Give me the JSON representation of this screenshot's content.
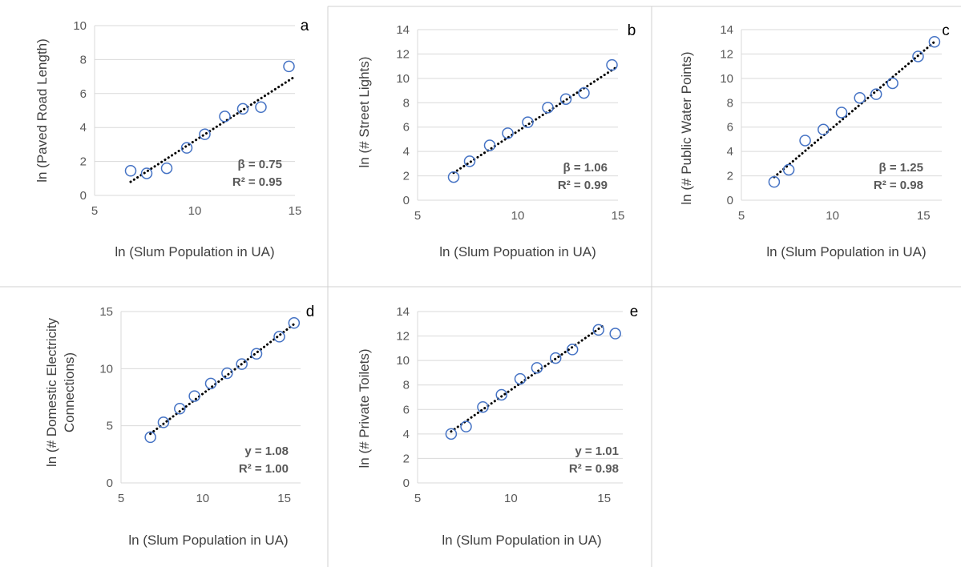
{
  "chart_data": [
    {
      "type": "scatter",
      "panel": "a",
      "xlabel": "ln (Slum Population in UA)",
      "ylabel": "ln (Paved Road Length)",
      "xlim": [
        5,
        15
      ],
      "ylim": [
        0,
        10
      ],
      "xticks": [
        5,
        10,
        15
      ],
      "yticks": [
        0,
        2,
        4,
        6,
        8,
        10
      ],
      "grid": "horizontal",
      "points": [
        {
          "x": 6.8,
          "y": 1.45
        },
        {
          "x": 7.6,
          "y": 1.3
        },
        {
          "x": 8.6,
          "y": 1.6
        },
        {
          "x": 9.6,
          "y": 2.8
        },
        {
          "x": 10.5,
          "y": 3.6
        },
        {
          "x": 11.5,
          "y": 4.65
        },
        {
          "x": 12.4,
          "y": 5.1
        },
        {
          "x": 13.3,
          "y": 5.2
        },
        {
          "x": 14.7,
          "y": 7.6
        }
      ],
      "trendline": {
        "x": [
          6.8,
          15.0
        ],
        "y": [
          0.8,
          7.0
        ]
      },
      "annotation": [
        "β = 0.75",
        "R² = 0.95"
      ]
    },
    {
      "type": "scatter",
      "panel": "b",
      "xlabel": "ln (Slum Popuation in UA)",
      "ylabel": "ln (# Street Lights)",
      "xlim": [
        5,
        15
      ],
      "ylim": [
        0,
        14
      ],
      "xticks": [
        5,
        10,
        15
      ],
      "yticks": [
        0,
        2,
        4,
        6,
        8,
        10,
        12,
        14
      ],
      "grid": "horizontal",
      "points": [
        {
          "x": 6.8,
          "y": 1.9
        },
        {
          "x": 7.6,
          "y": 3.2
        },
        {
          "x": 8.6,
          "y": 4.5
        },
        {
          "x": 9.5,
          "y": 5.5
        },
        {
          "x": 10.5,
          "y": 6.4
        },
        {
          "x": 11.5,
          "y": 7.6
        },
        {
          "x": 12.4,
          "y": 8.3
        },
        {
          "x": 13.3,
          "y": 8.8
        },
        {
          "x": 14.7,
          "y": 11.1
        }
      ],
      "trendline": {
        "x": [
          6.8,
          15.0
        ],
        "y": [
          2.25,
          11.0
        ]
      },
      "annotation": [
        "β = 1.06",
        "R² = 0.99"
      ]
    },
    {
      "type": "scatter",
      "panel": "c",
      "xlabel": "ln (Slum Population in UA)",
      "ylabel": "ln (# Public Water Points)",
      "xlim": [
        5,
        16
      ],
      "ylim": [
        0,
        14
      ],
      "xticks": [
        5,
        10,
        15
      ],
      "yticks": [
        0,
        2,
        4,
        6,
        8,
        10,
        12,
        14
      ],
      "grid": "horizontal",
      "points": [
        {
          "x": 6.8,
          "y": 1.5
        },
        {
          "x": 7.6,
          "y": 2.5
        },
        {
          "x": 8.5,
          "y": 4.9
        },
        {
          "x": 9.5,
          "y": 5.8
        },
        {
          "x": 10.5,
          "y": 7.2
        },
        {
          "x": 11.5,
          "y": 8.4
        },
        {
          "x": 12.4,
          "y": 8.7
        },
        {
          "x": 13.3,
          "y": 9.6
        },
        {
          "x": 14.7,
          "y": 11.8
        },
        {
          "x": 15.6,
          "y": 13.0
        }
      ],
      "trendline": {
        "x": [
          6.8,
          15.6
        ],
        "y": [
          1.9,
          13.0
        ]
      },
      "annotation": [
        "β = 1.25",
        "R² = 0.98"
      ]
    },
    {
      "type": "scatter",
      "panel": "d",
      "xlabel": "ln (Slum Population in UA)",
      "ylabel": [
        "ln (# Domestic Electricity",
        "Connections)"
      ],
      "xlim": [
        5,
        16
      ],
      "ylim": [
        0,
        15
      ],
      "xticks": [
        5,
        10,
        15
      ],
      "yticks": [
        0,
        5,
        10,
        15
      ],
      "grid": "horizontal",
      "points": [
        {
          "x": 6.8,
          "y": 4.0
        },
        {
          "x": 7.6,
          "y": 5.3
        },
        {
          "x": 8.6,
          "y": 6.5
        },
        {
          "x": 9.5,
          "y": 7.6
        },
        {
          "x": 10.5,
          "y": 8.7
        },
        {
          "x": 11.5,
          "y": 9.6
        },
        {
          "x": 12.4,
          "y": 10.4
        },
        {
          "x": 13.3,
          "y": 11.3
        },
        {
          "x": 14.7,
          "y": 12.8
        },
        {
          "x": 15.6,
          "y": 14.0
        }
      ],
      "trendline": {
        "x": [
          6.8,
          15.6
        ],
        "y": [
          4.3,
          13.9
        ]
      },
      "annotation": [
        "y = 1.08",
        "R² = 1.00"
      ]
    },
    {
      "type": "scatter",
      "panel": "e",
      "xlabel": "ln (Slum Population in UA)",
      "ylabel": "ln (# Private Toilets)",
      "xlim": [
        5,
        16
      ],
      "ylim": [
        0,
        14
      ],
      "xticks": [
        5,
        10,
        15
      ],
      "yticks": [
        0,
        2,
        4,
        6,
        8,
        10,
        12,
        14
      ],
      "grid": "horizontal",
      "points": [
        {
          "x": 6.8,
          "y": 4.0
        },
        {
          "x": 7.6,
          "y": 4.6
        },
        {
          "x": 8.5,
          "y": 6.2
        },
        {
          "x": 9.5,
          "y": 7.2
        },
        {
          "x": 10.5,
          "y": 8.5
        },
        {
          "x": 11.4,
          "y": 9.4
        },
        {
          "x": 12.4,
          "y": 10.2
        },
        {
          "x": 13.3,
          "y": 10.9
        },
        {
          "x": 14.7,
          "y": 12.5
        },
        {
          "x": 15.6,
          "y": 12.2
        }
      ],
      "trendline": {
        "x": [
          6.8,
          15.0
        ],
        "y": [
          4.2,
          12.9
        ]
      },
      "annotation": [
        "y = 1.01",
        "R² = 0.98"
      ]
    }
  ],
  "colors": {
    "marker": "#4472c4",
    "trendline": "#000000",
    "gridline": "#d9d9d9",
    "tick_text": "#595959",
    "axis_title_text": "#404040",
    "panel_border": "#d0d0d0"
  }
}
